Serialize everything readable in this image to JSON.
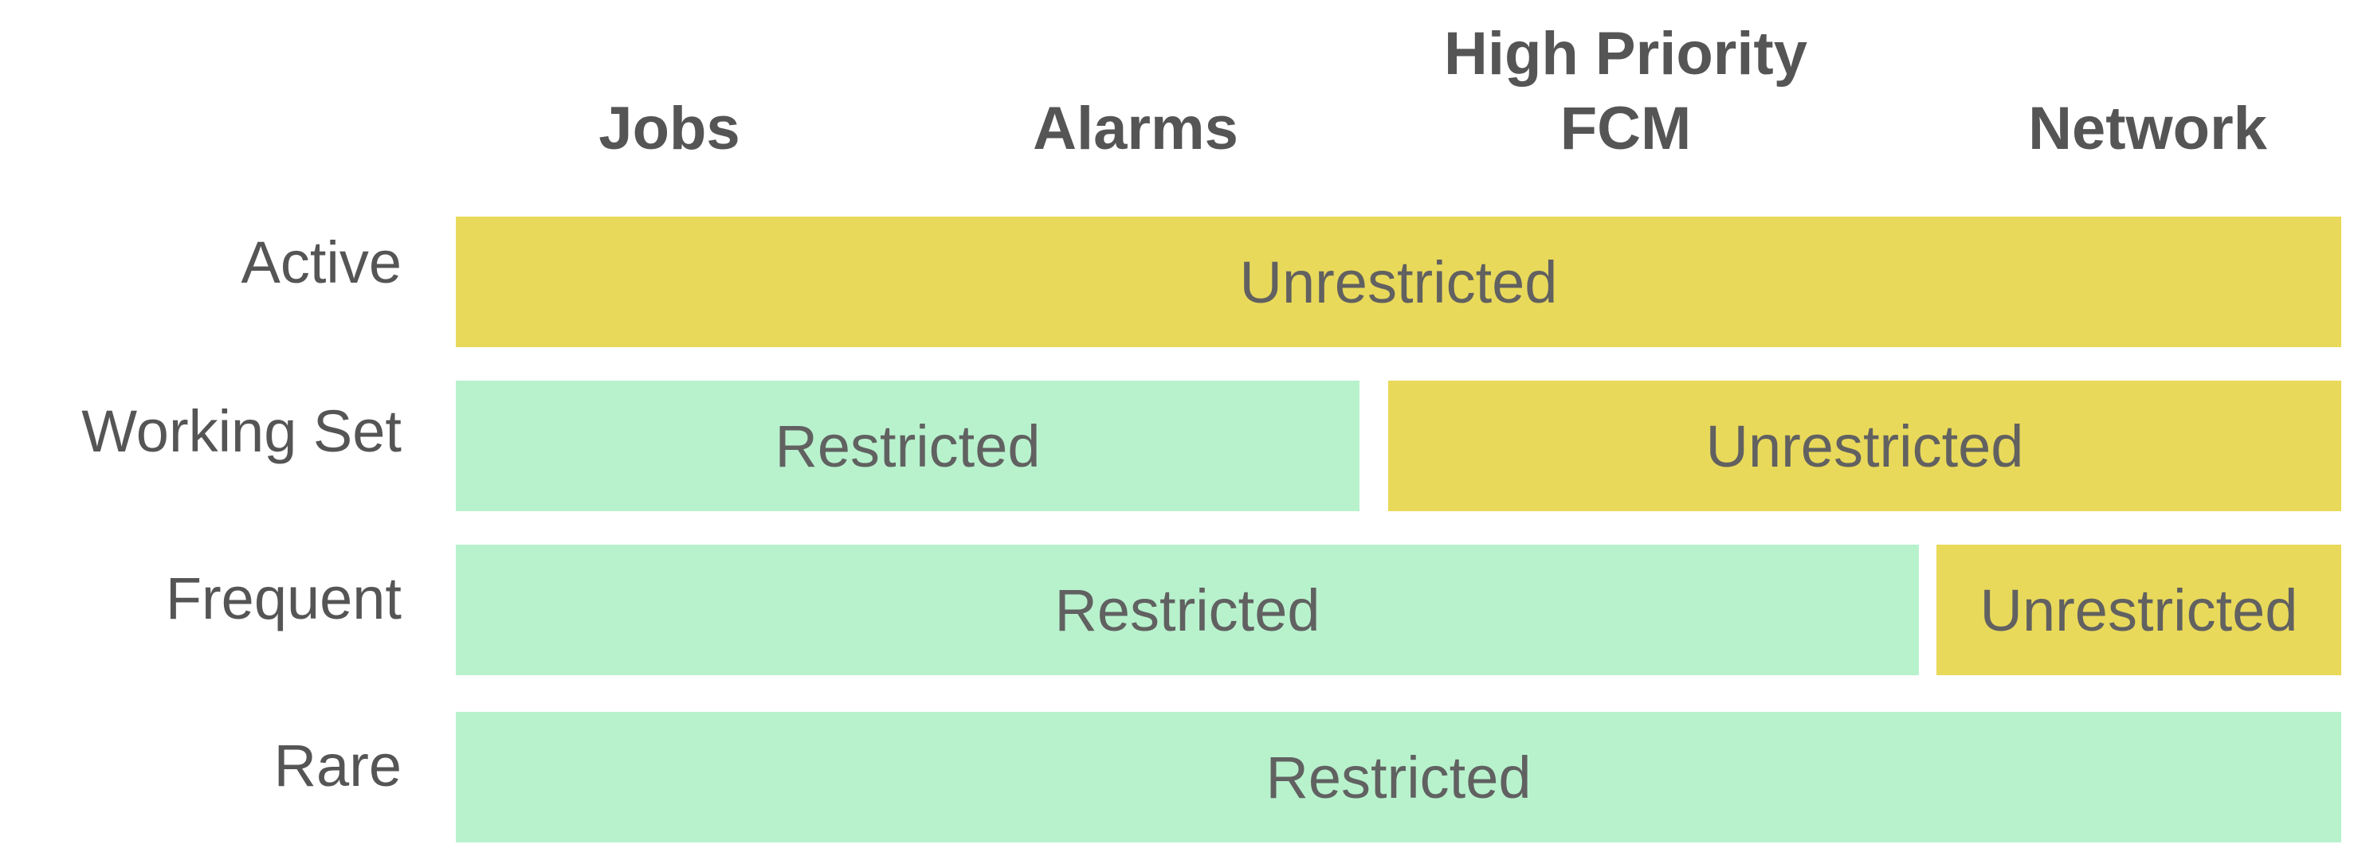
{
  "colors": {
    "unrestricted": "#e9d95a",
    "restricted": "#b8f2cd",
    "text": "#555555"
  },
  "columns": {
    "jobs": "Jobs",
    "alarms": "Alarms",
    "fcm_line1": "High Priority",
    "fcm_line2": "FCM",
    "network": "Network"
  },
  "rows": {
    "active": {
      "label": "Active",
      "cells": [
        "Unrestricted"
      ]
    },
    "working_set": {
      "label": "Working Set",
      "cells": [
        "Restricted",
        "Unrestricted"
      ]
    },
    "frequent": {
      "label": "Frequent",
      "cells": [
        "Restricted",
        "Unrestricted"
      ]
    },
    "rare": {
      "label": "Rare",
      "cells": [
        "Restricted"
      ]
    }
  }
}
